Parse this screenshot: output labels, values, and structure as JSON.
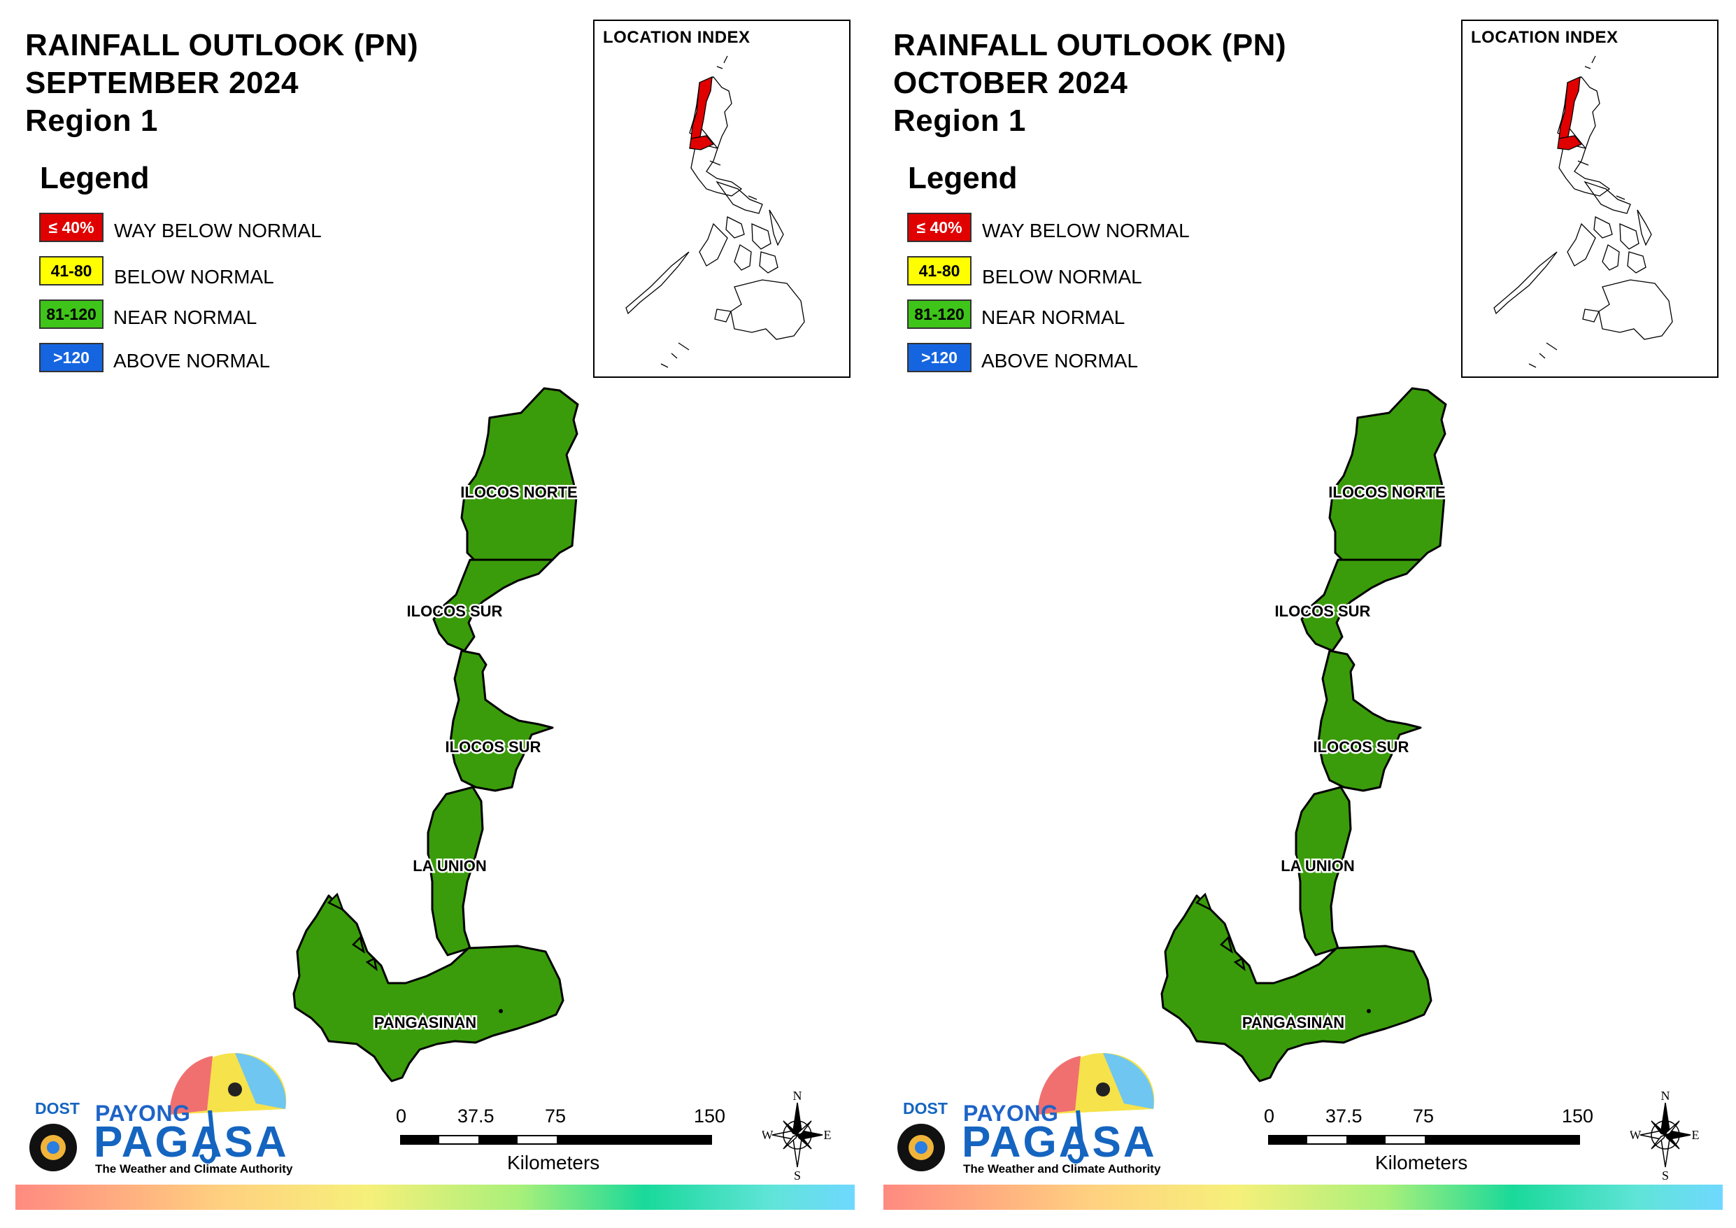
{
  "maps": [
    {
      "title_line1": "RAINFALL OUTLOOK (PN)",
      "title_line2": "SEPTEMBER 2024",
      "title_line3": "Region 1",
      "month": "SEPTEMBER 2024"
    },
    {
      "title_line1": "RAINFALL OUTLOOK (PN)",
      "title_line2": "OCTOBER 2024",
      "title_line3": "Region 1",
      "month": "OCTOBER 2024"
    }
  ],
  "legend": {
    "title": "Legend",
    "items": [
      {
        "range": "≤ 40%",
        "label": "WAY BELOW NORMAL",
        "color": "#e00000",
        "text_color": "#ffffff"
      },
      {
        "range": "41-80",
        "label": "BELOW NORMAL",
        "color": "#ffff00",
        "text_color": "#000000"
      },
      {
        "range": "81-120",
        "label": "NEAR NORMAL",
        "color": "#3fc41a",
        "text_color": "#000000"
      },
      {
        "range": ">120",
        "label": "ABOVE NORMAL",
        "color": "#1565e0",
        "text_color": "#ffffff"
      }
    ]
  },
  "location_index": {
    "title": "LOCATION INDEX",
    "highlight_color": "#e00000"
  },
  "provinces": [
    {
      "name": "ILOCOS NORTE",
      "category": "NEAR NORMAL"
    },
    {
      "name": "ILOCOS SUR",
      "category": "NEAR NORMAL"
    },
    {
      "name": "ILOCOS SUR",
      "category": "NEAR NORMAL"
    },
    {
      "name": "LA UNION",
      "category": "NEAR NORMAL"
    },
    {
      "name": "PANGASINAN",
      "category": "NEAR NORMAL"
    }
  ],
  "province_fill": "#3a9c0a",
  "scale": {
    "ticks": [
      "0",
      "37.5",
      "75",
      "150"
    ],
    "unit": "Kilometers"
  },
  "compass": {
    "n": "N",
    "s": "S",
    "e": "E",
    "w": "W"
  },
  "logo": {
    "dost": "DOST",
    "payong": "PAYONG",
    "pagasa": "PAGASA",
    "tagline": "The Weather and Climate Authority"
  }
}
